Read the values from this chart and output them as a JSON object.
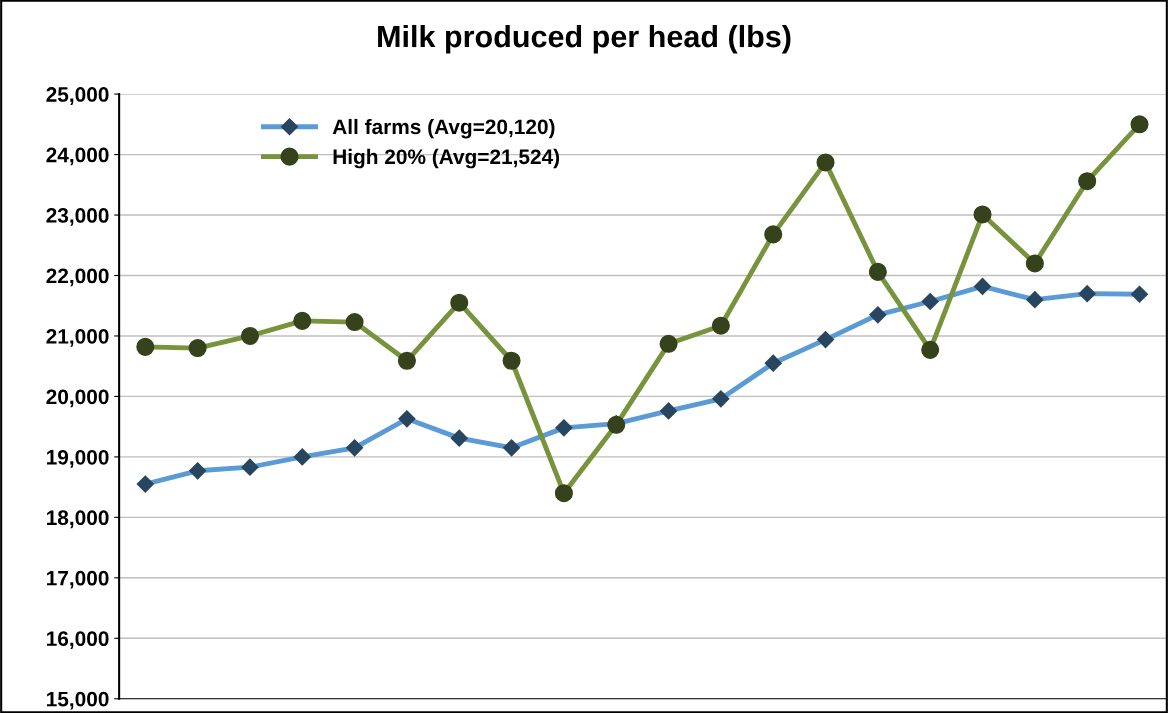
{
  "chart_data": {
    "type": "line",
    "title": "Milk produced per head (lbs)",
    "categories": [
      null,
      null,
      null,
      null,
      null,
      null,
      null,
      null,
      null,
      null,
      null,
      null,
      null,
      null,
      null,
      null,
      null,
      null,
      null,
      null
    ],
    "series": [
      {
        "name": "All farms (Avg=20,120)",
        "color": "#5b9bd5",
        "marker": "diamond",
        "values": [
          18550,
          18770,
          18830,
          19000,
          19150,
          19630,
          19310,
          19150,
          19480,
          19550,
          19760,
          19960,
          20550,
          20940,
          21350,
          21570,
          21820,
          21600,
          21700,
          21690
        ]
      },
      {
        "name": "High 20% (Avg=21,524)",
        "color": "#77933c",
        "marker": "circle",
        "values": [
          20820,
          20800,
          21000,
          21250,
          21230,
          20590,
          21550,
          20590,
          18400,
          19530,
          20870,
          21170,
          22680,
          23870,
          22060,
          20770,
          23010,
          22200,
          23560,
          24500
        ]
      }
    ],
    "ylim": [
      15000,
      25000
    ],
    "yticks": [
      {
        "value": 15000,
        "label": "15,000"
      },
      {
        "value": 16000,
        "label": "16,000"
      },
      {
        "value": 17000,
        "label": "17,000"
      },
      {
        "value": 18000,
        "label": "18,000"
      },
      {
        "value": 19000,
        "label": "19,000"
      },
      {
        "value": 20000,
        "label": "20,000"
      },
      {
        "value": 21000,
        "label": "21,000"
      },
      {
        "value": 22000,
        "label": "22,000"
      },
      {
        "value": 23000,
        "label": "23,000"
      },
      {
        "value": 24000,
        "label": "24,000"
      },
      {
        "value": 25000,
        "label": "25,000"
      }
    ],
    "grid": "y",
    "legend": "top left",
    "tick_labels": "y"
  }
}
